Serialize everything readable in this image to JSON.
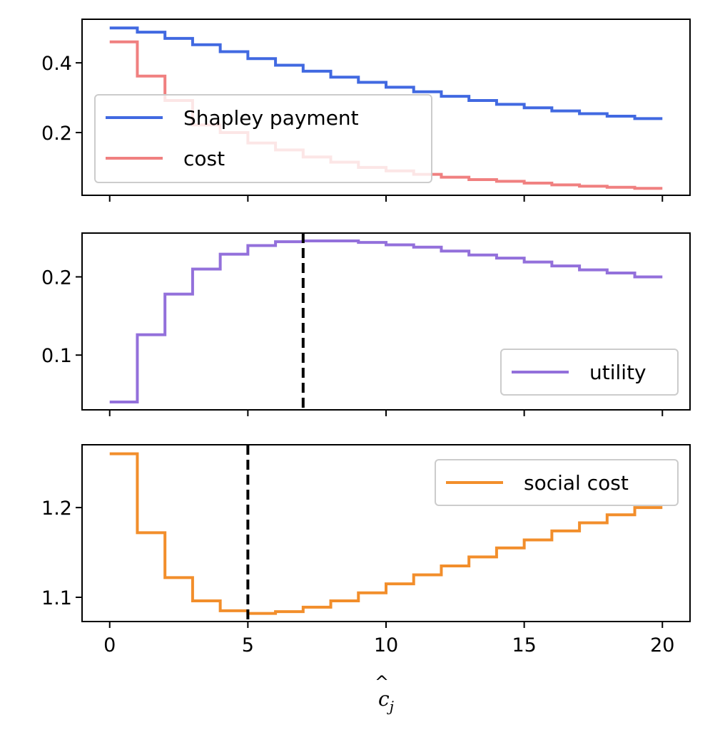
{
  "chart_data": [
    {
      "type": "line",
      "step": true,
      "x": [
        0,
        1,
        2,
        3,
        4,
        5,
        6,
        7,
        8,
        9,
        10,
        11,
        12,
        13,
        14,
        15,
        16,
        17,
        18,
        19,
        20
      ],
      "series": [
        {
          "name": "Shapley payment",
          "color": "#4169e1",
          "values": [
            0.5,
            0.488,
            0.47,
            0.452,
            0.432,
            0.412,
            0.393,
            0.376,
            0.359,
            0.344,
            0.33,
            0.317,
            0.304,
            0.292,
            0.281,
            0.271,
            0.262,
            0.254,
            0.247,
            0.24,
            0.24
          ]
        },
        {
          "name": "cost",
          "color": "#f08080",
          "values": [
            0.46,
            0.362,
            0.292,
            0.222,
            0.2,
            0.17,
            0.15,
            0.13,
            0.115,
            0.1,
            0.09,
            0.08,
            0.072,
            0.065,
            0.06,
            0.055,
            0.05,
            0.046,
            0.043,
            0.04,
            0.04
          ]
        }
      ],
      "title": "",
      "xlabel": "",
      "ylabel": "",
      "yticks": [
        0.2,
        0.4
      ],
      "ytick_labels": [
        "0.2",
        "0.4"
      ],
      "xticks": [
        0,
        5,
        10,
        15,
        20
      ],
      "xlim": [
        -1,
        21
      ],
      "ylim": [
        0.02,
        0.525
      ],
      "legend_position": "center-left"
    },
    {
      "type": "line",
      "step": true,
      "x": [
        0,
        1,
        2,
        3,
        4,
        5,
        6,
        7,
        8,
        9,
        10,
        11,
        12,
        13,
        14,
        15,
        16,
        17,
        18,
        19,
        20
      ],
      "series": [
        {
          "name": "utility",
          "color": "#9370db",
          "values": [
            0.04,
            0.126,
            0.178,
            0.21,
            0.229,
            0.24,
            0.245,
            0.246,
            0.246,
            0.244,
            0.241,
            0.238,
            0.233,
            0.228,
            0.224,
            0.219,
            0.214,
            0.209,
            0.205,
            0.2,
            0.2
          ]
        }
      ],
      "vline": 7,
      "title": "",
      "xlabel": "",
      "ylabel": "",
      "yticks": [
        0.1,
        0.2
      ],
      "ytick_labels": [
        "0.1",
        "0.2"
      ],
      "xticks": [
        0,
        5,
        10,
        15,
        20
      ],
      "xlim": [
        -1,
        21
      ],
      "ylim": [
        0.03,
        0.256
      ],
      "legend_position": "lower-right"
    },
    {
      "type": "line",
      "step": true,
      "x": [
        0,
        1,
        2,
        3,
        4,
        5,
        6,
        7,
        8,
        9,
        10,
        11,
        12,
        13,
        14,
        15,
        16,
        17,
        18,
        19,
        20
      ],
      "series": [
        {
          "name": "social cost",
          "color": "#f28e2b",
          "values": [
            1.26,
            1.172,
            1.122,
            1.096,
            1.085,
            1.082,
            1.084,
            1.089,
            1.096,
            1.105,
            1.115,
            1.125,
            1.135,
            1.145,
            1.155,
            1.164,
            1.174,
            1.183,
            1.192,
            1.2,
            1.2
          ]
        }
      ],
      "vline": 5,
      "title": "",
      "xlabel": "ĉ_j",
      "ylabel": "",
      "yticks": [
        1.1,
        1.2
      ],
      "ytick_labels": [
        "1.1",
        "1.2"
      ],
      "xticks": [
        0,
        5,
        10,
        15,
        20
      ],
      "xtick_labels": [
        "0",
        "5",
        "10",
        "15",
        "20"
      ],
      "xlim": [
        -1,
        21
      ],
      "ylim": [
        1.073,
        1.27
      ],
      "legend_position": "upper-right"
    }
  ],
  "axis_label": {
    "x_base": "c",
    "x_sub": "j"
  }
}
